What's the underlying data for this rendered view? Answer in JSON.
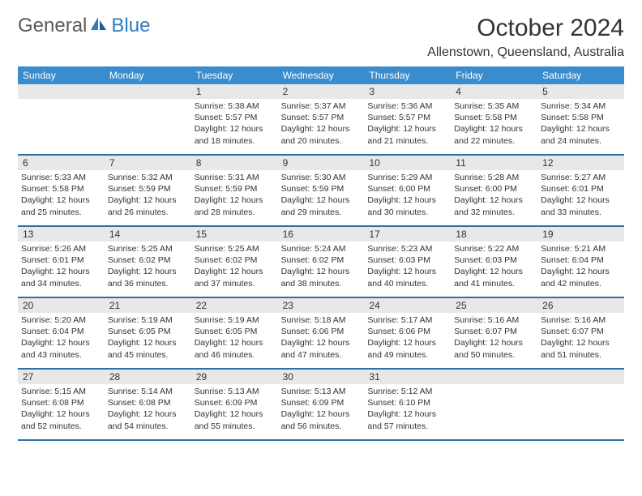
{
  "logo": {
    "part1": "General",
    "part2": "Blue"
  },
  "title": "October 2024",
  "location": "Allenstown, Queensland, Australia",
  "colors": {
    "header_bg": "#3a8ccd",
    "header_text": "#ffffff",
    "daynum_bg": "#e8e8e8",
    "week_border": "#2f6fa8",
    "logo_blue": "#2f7cc4",
    "text": "#333333",
    "page_bg": "#ffffff"
  },
  "weekdays": [
    "Sunday",
    "Monday",
    "Tuesday",
    "Wednesday",
    "Thursday",
    "Friday",
    "Saturday"
  ],
  "weeks": [
    [
      {
        "n": "",
        "sunrise": "",
        "sunset": "",
        "daylight": ""
      },
      {
        "n": "",
        "sunrise": "",
        "sunset": "",
        "daylight": ""
      },
      {
        "n": "1",
        "sunrise": "Sunrise: 5:38 AM",
        "sunset": "Sunset: 5:57 PM",
        "daylight": "Daylight: 12 hours and 18 minutes."
      },
      {
        "n": "2",
        "sunrise": "Sunrise: 5:37 AM",
        "sunset": "Sunset: 5:57 PM",
        "daylight": "Daylight: 12 hours and 20 minutes."
      },
      {
        "n": "3",
        "sunrise": "Sunrise: 5:36 AM",
        "sunset": "Sunset: 5:57 PM",
        "daylight": "Daylight: 12 hours and 21 minutes."
      },
      {
        "n": "4",
        "sunrise": "Sunrise: 5:35 AM",
        "sunset": "Sunset: 5:58 PM",
        "daylight": "Daylight: 12 hours and 22 minutes."
      },
      {
        "n": "5",
        "sunrise": "Sunrise: 5:34 AM",
        "sunset": "Sunset: 5:58 PM",
        "daylight": "Daylight: 12 hours and 24 minutes."
      }
    ],
    [
      {
        "n": "6",
        "sunrise": "Sunrise: 5:33 AM",
        "sunset": "Sunset: 5:58 PM",
        "daylight": "Daylight: 12 hours and 25 minutes."
      },
      {
        "n": "7",
        "sunrise": "Sunrise: 5:32 AM",
        "sunset": "Sunset: 5:59 PM",
        "daylight": "Daylight: 12 hours and 26 minutes."
      },
      {
        "n": "8",
        "sunrise": "Sunrise: 5:31 AM",
        "sunset": "Sunset: 5:59 PM",
        "daylight": "Daylight: 12 hours and 28 minutes."
      },
      {
        "n": "9",
        "sunrise": "Sunrise: 5:30 AM",
        "sunset": "Sunset: 5:59 PM",
        "daylight": "Daylight: 12 hours and 29 minutes."
      },
      {
        "n": "10",
        "sunrise": "Sunrise: 5:29 AM",
        "sunset": "Sunset: 6:00 PM",
        "daylight": "Daylight: 12 hours and 30 minutes."
      },
      {
        "n": "11",
        "sunrise": "Sunrise: 5:28 AM",
        "sunset": "Sunset: 6:00 PM",
        "daylight": "Daylight: 12 hours and 32 minutes."
      },
      {
        "n": "12",
        "sunrise": "Sunrise: 5:27 AM",
        "sunset": "Sunset: 6:01 PM",
        "daylight": "Daylight: 12 hours and 33 minutes."
      }
    ],
    [
      {
        "n": "13",
        "sunrise": "Sunrise: 5:26 AM",
        "sunset": "Sunset: 6:01 PM",
        "daylight": "Daylight: 12 hours and 34 minutes."
      },
      {
        "n": "14",
        "sunrise": "Sunrise: 5:25 AM",
        "sunset": "Sunset: 6:02 PM",
        "daylight": "Daylight: 12 hours and 36 minutes."
      },
      {
        "n": "15",
        "sunrise": "Sunrise: 5:25 AM",
        "sunset": "Sunset: 6:02 PM",
        "daylight": "Daylight: 12 hours and 37 minutes."
      },
      {
        "n": "16",
        "sunrise": "Sunrise: 5:24 AM",
        "sunset": "Sunset: 6:02 PM",
        "daylight": "Daylight: 12 hours and 38 minutes."
      },
      {
        "n": "17",
        "sunrise": "Sunrise: 5:23 AM",
        "sunset": "Sunset: 6:03 PM",
        "daylight": "Daylight: 12 hours and 40 minutes."
      },
      {
        "n": "18",
        "sunrise": "Sunrise: 5:22 AM",
        "sunset": "Sunset: 6:03 PM",
        "daylight": "Daylight: 12 hours and 41 minutes."
      },
      {
        "n": "19",
        "sunrise": "Sunrise: 5:21 AM",
        "sunset": "Sunset: 6:04 PM",
        "daylight": "Daylight: 12 hours and 42 minutes."
      }
    ],
    [
      {
        "n": "20",
        "sunrise": "Sunrise: 5:20 AM",
        "sunset": "Sunset: 6:04 PM",
        "daylight": "Daylight: 12 hours and 43 minutes."
      },
      {
        "n": "21",
        "sunrise": "Sunrise: 5:19 AM",
        "sunset": "Sunset: 6:05 PM",
        "daylight": "Daylight: 12 hours and 45 minutes."
      },
      {
        "n": "22",
        "sunrise": "Sunrise: 5:19 AM",
        "sunset": "Sunset: 6:05 PM",
        "daylight": "Daylight: 12 hours and 46 minutes."
      },
      {
        "n": "23",
        "sunrise": "Sunrise: 5:18 AM",
        "sunset": "Sunset: 6:06 PM",
        "daylight": "Daylight: 12 hours and 47 minutes."
      },
      {
        "n": "24",
        "sunrise": "Sunrise: 5:17 AM",
        "sunset": "Sunset: 6:06 PM",
        "daylight": "Daylight: 12 hours and 49 minutes."
      },
      {
        "n": "25",
        "sunrise": "Sunrise: 5:16 AM",
        "sunset": "Sunset: 6:07 PM",
        "daylight": "Daylight: 12 hours and 50 minutes."
      },
      {
        "n": "26",
        "sunrise": "Sunrise: 5:16 AM",
        "sunset": "Sunset: 6:07 PM",
        "daylight": "Daylight: 12 hours and 51 minutes."
      }
    ],
    [
      {
        "n": "27",
        "sunrise": "Sunrise: 5:15 AM",
        "sunset": "Sunset: 6:08 PM",
        "daylight": "Daylight: 12 hours and 52 minutes."
      },
      {
        "n": "28",
        "sunrise": "Sunrise: 5:14 AM",
        "sunset": "Sunset: 6:08 PM",
        "daylight": "Daylight: 12 hours and 54 minutes."
      },
      {
        "n": "29",
        "sunrise": "Sunrise: 5:13 AM",
        "sunset": "Sunset: 6:09 PM",
        "daylight": "Daylight: 12 hours and 55 minutes."
      },
      {
        "n": "30",
        "sunrise": "Sunrise: 5:13 AM",
        "sunset": "Sunset: 6:09 PM",
        "daylight": "Daylight: 12 hours and 56 minutes."
      },
      {
        "n": "31",
        "sunrise": "Sunrise: 5:12 AM",
        "sunset": "Sunset: 6:10 PM",
        "daylight": "Daylight: 12 hours and 57 minutes."
      },
      {
        "n": "",
        "sunrise": "",
        "sunset": "",
        "daylight": ""
      },
      {
        "n": "",
        "sunrise": "",
        "sunset": "",
        "daylight": ""
      }
    ]
  ]
}
